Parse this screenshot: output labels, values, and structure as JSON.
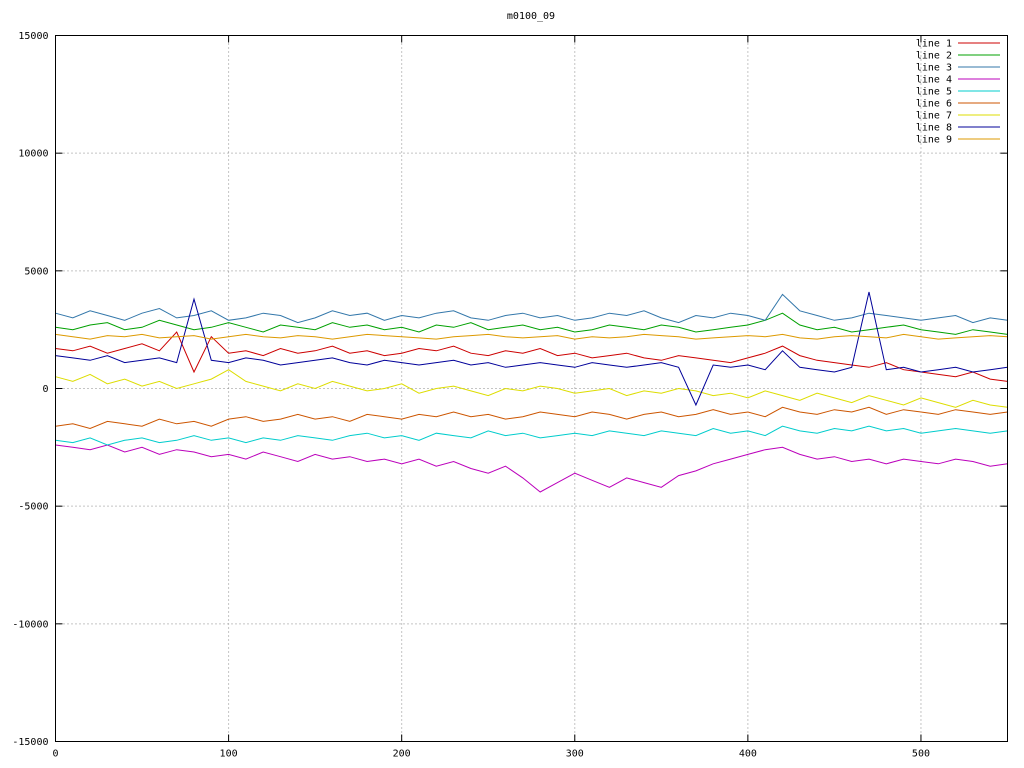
{
  "colors": {
    "background": "#ffffff",
    "border": "#000000",
    "grid": "#8a8a8a",
    "text": "#000000"
  },
  "chart_data": {
    "type": "line",
    "title": "m0100_09",
    "xlabel": "",
    "ylabel": "",
    "xlim": [
      0,
      550
    ],
    "ylim": [
      -15000,
      15000
    ],
    "x_ticks": [
      0,
      100,
      200,
      300,
      400,
      500
    ],
    "y_ticks": [
      -15000,
      -10000,
      -5000,
      0,
      5000,
      10000,
      15000
    ],
    "grid": true,
    "grid_style": "dotted",
    "legend_position": "top-right-inside",
    "x_start": 0,
    "x_step": 10,
    "series": [
      {
        "name": "line 1",
        "color": "#cc0000",
        "values": [
          1700,
          1600,
          1800,
          1500,
          1700,
          1900,
          1600,
          2400,
          700,
          2200,
          1500,
          1600,
          1400,
          1700,
          1500,
          1600,
          1800,
          1500,
          1600,
          1400,
          1500,
          1700,
          1600,
          1800,
          1500,
          1400,
          1600,
          1500,
          1700,
          1400,
          1500,
          1300,
          1400,
          1500,
          1300,
          1200,
          1400,
          1300,
          1200,
          1100,
          1300,
          1500,
          1800,
          1400,
          1200,
          1100,
          1000,
          900,
          1100,
          800,
          700,
          600,
          500,
          700,
          400,
          300
        ]
      },
      {
        "name": "line 2",
        "color": "#00a000",
        "values": [
          2600,
          2500,
          2700,
          2800,
          2500,
          2600,
          2900,
          2700,
          2500,
          2600,
          2800,
          2600,
          2400,
          2700,
          2600,
          2500,
          2800,
          2600,
          2700,
          2500,
          2600,
          2400,
          2700,
          2600,
          2800,
          2500,
          2600,
          2700,
          2500,
          2600,
          2400,
          2500,
          2700,
          2600,
          2500,
          2700,
          2600,
          2400,
          2500,
          2600,
          2700,
          2900,
          3200,
          2700,
          2500,
          2600,
          2400,
          2500,
          2600,
          2700,
          2500,
          2400,
          2300,
          2500,
          2400,
          2300
        ]
      },
      {
        "name": "line 3",
        "color": "#3377aa",
        "values": [
          3200,
          3000,
          3300,
          3100,
          2900,
          3200,
          3400,
          3000,
          3100,
          3300,
          2900,
          3000,
          3200,
          3100,
          2800,
          3000,
          3300,
          3100,
          3200,
          2900,
          3100,
          3000,
          3200,
          3300,
          3000,
          2900,
          3100,
          3200,
          3000,
          3100,
          2900,
          3000,
          3200,
          3100,
          3300,
          3000,
          2800,
          3100,
          3000,
          3200,
          3100,
          2900,
          4000,
          3300,
          3100,
          2900,
          3000,
          3200,
          3100,
          3000,
          2900,
          3000,
          3100,
          2800,
          3000,
          2900
        ]
      },
      {
        "name": "line 4",
        "color": "#bb00bb",
        "values": [
          -2400,
          -2500,
          -2600,
          -2400,
          -2700,
          -2500,
          -2800,
          -2600,
          -2700,
          -2900,
          -2800,
          -3000,
          -2700,
          -2900,
          -3100,
          -2800,
          -3000,
          -2900,
          -3100,
          -3000,
          -3200,
          -3000,
          -3300,
          -3100,
          -3400,
          -3600,
          -3300,
          -3800,
          -4400,
          -4000,
          -3600,
          -3900,
          -4200,
          -3800,
          -4000,
          -4200,
          -3700,
          -3500,
          -3200,
          -3000,
          -2800,
          -2600,
          -2500,
          -2800,
          -3000,
          -2900,
          -3100,
          -3000,
          -3200,
          -3000,
          -3100,
          -3200,
          -3000,
          -3100,
          -3300,
          -3200
        ]
      },
      {
        "name": "line 5",
        "color": "#00cccc",
        "values": [
          -2200,
          -2300,
          -2100,
          -2400,
          -2200,
          -2100,
          -2300,
          -2200,
          -2000,
          -2200,
          -2100,
          -2300,
          -2100,
          -2200,
          -2000,
          -2100,
          -2200,
          -2000,
          -1900,
          -2100,
          -2000,
          -2200,
          -1900,
          -2000,
          -2100,
          -1800,
          -2000,
          -1900,
          -2100,
          -2000,
          -1900,
          -2000,
          -1800,
          -1900,
          -2000,
          -1800,
          -1900,
          -2000,
          -1700,
          -1900,
          -1800,
          -2000,
          -1600,
          -1800,
          -1900,
          -1700,
          -1800,
          -1600,
          -1800,
          -1700,
          -1900,
          -1800,
          -1700,
          -1800,
          -1900,
          -1800
        ]
      },
      {
        "name": "line 6",
        "color": "#cc5500",
        "values": [
          -1600,
          -1500,
          -1700,
          -1400,
          -1500,
          -1600,
          -1300,
          -1500,
          -1400,
          -1600,
          -1300,
          -1200,
          -1400,
          -1300,
          -1100,
          -1300,
          -1200,
          -1400,
          -1100,
          -1200,
          -1300,
          -1100,
          -1200,
          -1000,
          -1200,
          -1100,
          -1300,
          -1200,
          -1000,
          -1100,
          -1200,
          -1000,
          -1100,
          -1300,
          -1100,
          -1000,
          -1200,
          -1100,
          -900,
          -1100,
          -1000,
          -1200,
          -800,
          -1000,
          -1100,
          -900,
          -1000,
          -800,
          -1100,
          -900,
          -1000,
          -1100,
          -900,
          -1000,
          -1100,
          -1000
        ]
      },
      {
        "name": "line 7",
        "color": "#dddd00",
        "values": [
          500,
          300,
          600,
          200,
          400,
          100,
          300,
          0,
          200,
          400,
          800,
          300,
          100,
          -100,
          200,
          0,
          300,
          100,
          -100,
          0,
          200,
          -200,
          0,
          100,
          -100,
          -300,
          0,
          -100,
          100,
          0,
          -200,
          -100,
          0,
          -300,
          -100,
          -200,
          0,
          -100,
          -300,
          -200,
          -400,
          -100,
          -300,
          -500,
          -200,
          -400,
          -600,
          -300,
          -500,
          -700,
          -400,
          -600,
          -800,
          -500,
          -700,
          -800
        ]
      },
      {
        "name": "line 8",
        "color": "#000099",
        "values": [
          1400,
          1300,
          1200,
          1400,
          1100,
          1200,
          1300,
          1100,
          3800,
          1200,
          1100,
          1300,
          1200,
          1000,
          1100,
          1200,
          1300,
          1100,
          1000,
          1200,
          1100,
          1000,
          1100,
          1200,
          1000,
          1100,
          900,
          1000,
          1100,
          1000,
          900,
          1100,
          1000,
          900,
          1000,
          1100,
          900,
          -700,
          1000,
          900,
          1000,
          800,
          1600,
          900,
          800,
          700,
          900,
          4100,
          800,
          900,
          700,
          800,
          900,
          700,
          800,
          900
        ]
      },
      {
        "name": "line 9",
        "color": "#dd9900",
        "values": [
          2300,
          2200,
          2100,
          2250,
          2200,
          2300,
          2150,
          2200,
          2250,
          2100,
          2200,
          2300,
          2200,
          2150,
          2250,
          2200,
          2100,
          2200,
          2300,
          2250,
          2200,
          2150,
          2100,
          2200,
          2250,
          2300,
          2200,
          2150,
          2200,
          2250,
          2100,
          2200,
          2150,
          2200,
          2300,
          2250,
          2200,
          2100,
          2150,
          2200,
          2250,
          2200,
          2300,
          2150,
          2100,
          2200,
          2250,
          2200,
          2150,
          2300,
          2200,
          2100,
          2150,
          2200,
          2250,
          2200
        ]
      }
    ]
  }
}
